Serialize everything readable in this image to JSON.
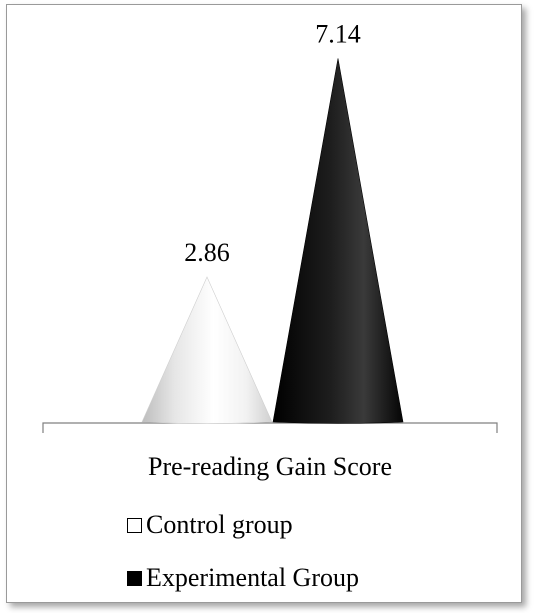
{
  "chart_data": {
    "type": "cone",
    "categories": [
      "Pre-reading Gain Score"
    ],
    "series": [
      {
        "name": "Control group",
        "value": 2.86,
        "label": "2.86",
        "color": "#ffffff"
      },
      {
        "name": "Experimental Group",
        "value": 7.14,
        "label": "7.14",
        "color": "#000000"
      }
    ],
    "ylim": [
      0,
      7.5
    ],
    "grid": false,
    "legend_position": "bottom"
  }
}
